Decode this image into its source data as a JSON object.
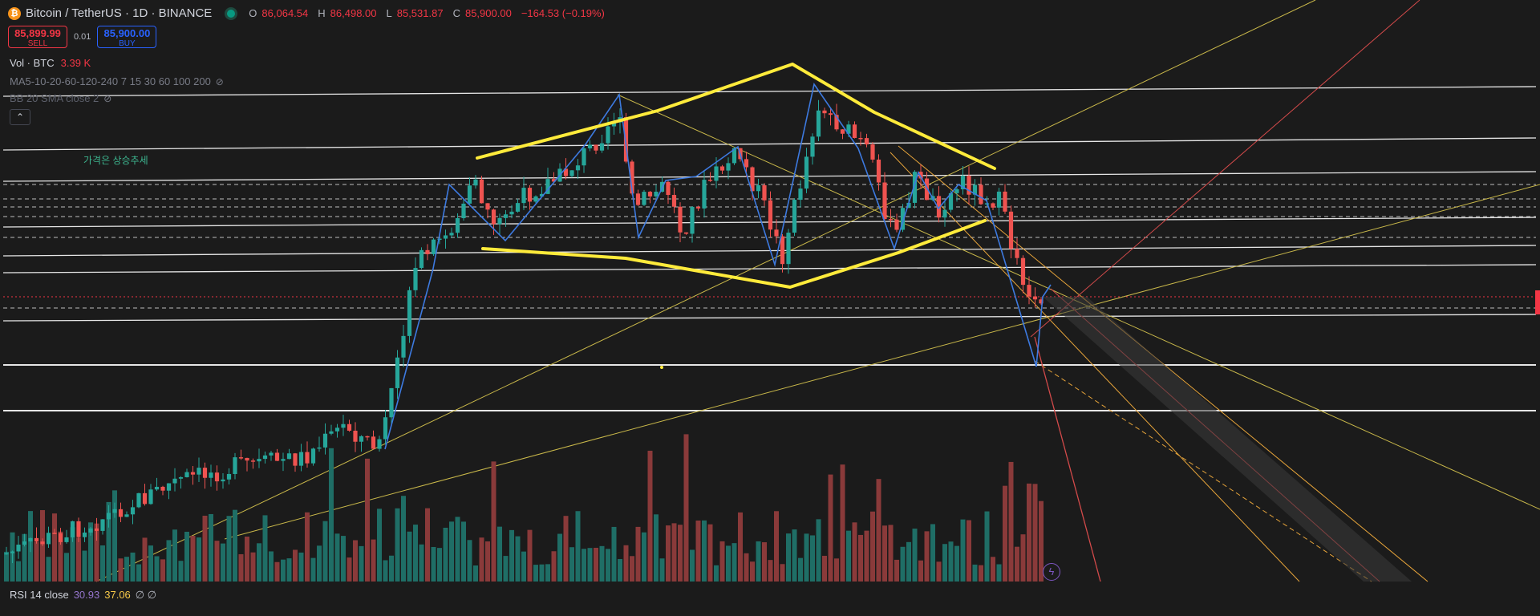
{
  "header": {
    "symbol_icon": "bitcoin-icon",
    "title": "Bitcoin / TetherUS · 1D · BINANCE",
    "ohlc": [
      {
        "label": "O",
        "value": "86,064.54"
      },
      {
        "label": "H",
        "value": "86,498.00"
      },
      {
        "label": "L",
        "value": "85,531.87"
      },
      {
        "label": "C",
        "value": "85,900.00"
      }
    ],
    "change": "−164.53 (−0.19%)"
  },
  "trade": {
    "sell_price": "85,899.99",
    "sell_label": "SELL",
    "spread": "0.01",
    "buy_price": "85,900.00",
    "buy_label": "BUY"
  },
  "indicators": {
    "volume_label": "Vol · BTC",
    "volume_value": "3.39 K",
    "ma_label": "MA5-10-20-60-120-240 7 15 30 60 100 200",
    "bb_label": "BB 20 SMA close 2",
    "eye_icon": "eye-off-icon",
    "collapse_icon": "chevron-up-icon"
  },
  "annotation": "가격은 상승추세",
  "rsi": {
    "label": "RSI 14 close",
    "value1": "30.93",
    "value2": "37.06",
    "symbols": "∅ ∅"
  },
  "colors": {
    "background": "#1b1b1b",
    "candle_up": "#26a69a",
    "candle_down": "#ef5350",
    "volume_up": "#1f6e66",
    "volume_down": "#8a3a3a",
    "pattern": "#ffeb3b",
    "zigzag": "#3d7ae0",
    "trendline": "#c9b84a",
    "fib_line": "#e5a33a",
    "red_line": "#d34a4a",
    "levels": "#e0e0e0"
  },
  "bolt_icon": "lightning-icon"
}
